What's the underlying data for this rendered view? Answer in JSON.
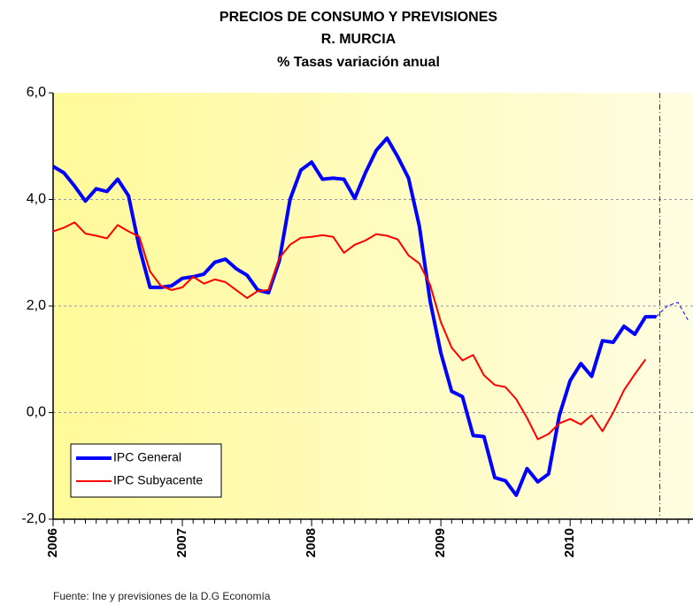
{
  "chart_data": {
    "type": "line",
    "title": [
      "PRECIOS DE CONSUMO Y PREVISIONES",
      "R. MURCIA",
      "% Tasas variación anual"
    ],
    "source": "Fuente: Ine y previsiones de la D.G Economía",
    "categories": [
      "2006",
      null,
      null,
      null,
      null,
      null,
      null,
      null,
      null,
      null,
      null,
      null,
      "2007",
      null,
      null,
      null,
      null,
      null,
      null,
      null,
      null,
      null,
      null,
      null,
      "2008",
      null,
      null,
      null,
      null,
      null,
      null,
      null,
      null,
      null,
      null,
      null,
      "2009",
      null,
      null,
      null,
      null,
      null,
      null,
      null,
      null,
      null,
      null,
      null,
      "2010",
      null,
      null,
      null,
      null,
      null,
      null,
      null,
      null,
      null,
      null,
      null
    ],
    "series": [
      {
        "name": "IPC General",
        "color": "#0000ff",
        "width": 4,
        "values": [
          4.62,
          4.5,
          4.25,
          3.97,
          4.2,
          4.15,
          4.38,
          4.07,
          3.1,
          2.35,
          2.35,
          2.38,
          2.52,
          2.55,
          2.6,
          2.82,
          2.88,
          2.7,
          2.58,
          2.3,
          2.25,
          2.85,
          4.0,
          4.55,
          4.7,
          4.38,
          4.4,
          4.38,
          4.02,
          4.5,
          4.92,
          5.15,
          4.8,
          4.4,
          3.5,
          2.1,
          1.12,
          0.4,
          0.3,
          -0.43,
          -0.45,
          -1.22,
          -1.28,
          -1.55,
          -1.05,
          -1.3,
          -1.15,
          -0.05,
          0.6,
          0.92,
          0.68,
          1.35,
          1.32,
          1.62,
          1.47,
          1.8,
          1.8,
          null,
          null,
          null
        ]
      },
      {
        "name": "IPC Subyacente",
        "color": "#ff0000",
        "width": 2,
        "values": [
          3.4,
          3.47,
          3.57,
          3.36,
          3.32,
          3.27,
          3.52,
          3.4,
          3.3,
          2.65,
          2.38,
          2.3,
          2.35,
          2.55,
          2.42,
          2.5,
          2.45,
          2.3,
          2.15,
          2.28,
          2.3,
          2.9,
          3.15,
          3.28,
          3.3,
          3.33,
          3.3,
          3.0,
          3.15,
          3.23,
          3.35,
          3.32,
          3.25,
          2.95,
          2.8,
          2.4,
          1.7,
          1.22,
          0.98,
          1.08,
          0.7,
          0.52,
          0.48,
          0.25,
          -0.1,
          -0.5,
          -0.4,
          -0.2,
          -0.12,
          -0.22,
          -0.05,
          -0.35,
          0.0,
          0.42,
          0.72,
          1.0,
          null,
          null,
          null,
          null
        ]
      },
      {
        "color": "#0000ff",
        "width": 1,
        "dashed": true,
        "values": [
          null,
          null,
          null,
          null,
          null,
          null,
          null,
          null,
          null,
          null,
          null,
          null,
          null,
          null,
          null,
          null,
          null,
          null,
          null,
          null,
          null,
          null,
          null,
          null,
          null,
          null,
          null,
          null,
          null,
          null,
          null,
          null,
          null,
          null,
          null,
          null,
          null,
          null,
          null,
          null,
          null,
          null,
          null,
          null,
          null,
          null,
          null,
          null,
          null,
          null,
          null,
          null,
          null,
          null,
          null,
          null,
          1.8,
          2.0,
          2.07,
          1.72
        ]
      }
    ],
    "ylim": [
      -2,
      6
    ],
    "yticks": [
      {
        "value": -2,
        "label": "-2,0"
      },
      {
        "value": 0,
        "label": "0,0"
      },
      {
        "value": 2,
        "label": "2,0"
      },
      {
        "value": 4,
        "label": "4,0"
      },
      {
        "value": 6,
        "label": "6,0"
      }
    ],
    "grid": true,
    "legend": "lower left"
  }
}
